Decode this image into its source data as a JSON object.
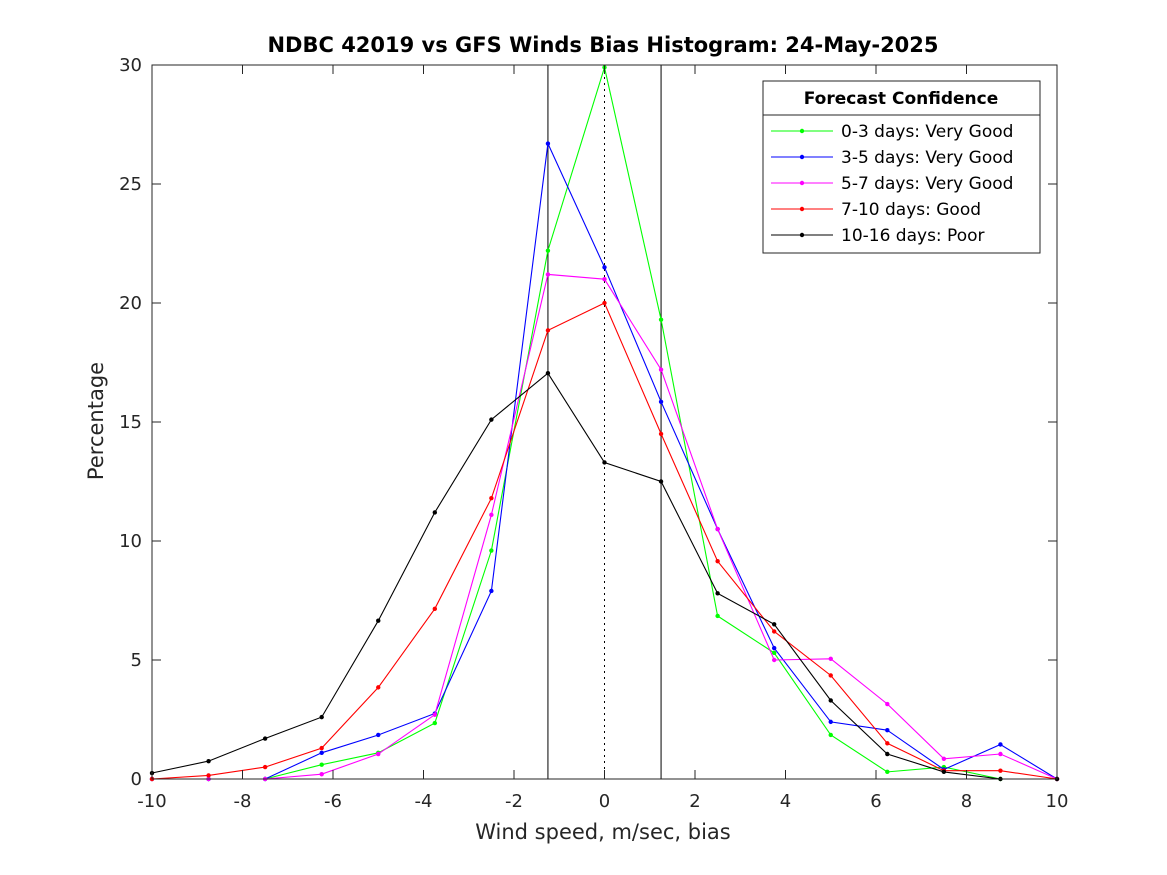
{
  "chart_data": {
    "type": "line",
    "title": "NDBC 42019 vs GFS Winds Bias Histogram: 24-May-2025",
    "xlabel": "Wind speed, m/sec, bias",
    "ylabel": "Percentage",
    "xlim": [
      -10,
      10
    ],
    "ylim": [
      0,
      30
    ],
    "xticks": [
      -10,
      -8,
      -6,
      -4,
      -2,
      0,
      2,
      4,
      6,
      8,
      10
    ],
    "yticks": [
      0,
      5,
      10,
      15,
      20,
      25,
      30
    ],
    "grid": false,
    "legend_title": "Forecast Confidence",
    "legend_position": "top-right",
    "reference_lines": [
      {
        "x": -1.25,
        "style": "solid"
      },
      {
        "x": 0,
        "style": "dotted"
      },
      {
        "x": 1.25,
        "style": "solid"
      }
    ],
    "x": [
      -10,
      -8.75,
      -7.5,
      -6.25,
      -5,
      -3.75,
      -2.5,
      -1.25,
      0,
      1.25,
      2.5,
      3.75,
      5,
      6.25,
      7.5,
      8.75,
      10
    ],
    "series": [
      {
        "name": "0-3 days: Very Good",
        "color": "#00ff00",
        "values": [
          0,
          0,
          0,
          0.6,
          1.1,
          2.35,
          9.6,
          22.2,
          29.9,
          19.3,
          6.85,
          5.3,
          1.85,
          0.3,
          0.5,
          0,
          0
        ]
      },
      {
        "name": "3-5 days: Very Good",
        "color": "#0000ff",
        "values": [
          0,
          0,
          0,
          1.1,
          1.85,
          2.75,
          7.9,
          26.7,
          21.5,
          15.85,
          10.5,
          5.5,
          2.4,
          2.05,
          0.4,
          1.45,
          0
        ]
      },
      {
        "name": "5-7 days: Very Good",
        "color": "#ff00ff",
        "values": [
          0,
          0,
          0,
          0.2,
          1.05,
          2.7,
          11.1,
          21.2,
          21.0,
          17.2,
          10.5,
          5.0,
          5.05,
          3.15,
          0.85,
          1.05,
          0
        ]
      },
      {
        "name": "7-10 days: Good",
        "color": "#ff0000",
        "values": [
          0,
          0.15,
          0.5,
          1.3,
          3.85,
          7.15,
          11.8,
          18.85,
          20.0,
          14.5,
          9.15,
          6.2,
          4.35,
          1.5,
          0.35,
          0.35,
          0
        ]
      },
      {
        "name": "10-16 days: Poor",
        "color": "#000000",
        "values": [
          0.25,
          0.75,
          1.7,
          2.6,
          6.65,
          11.2,
          15.1,
          17.05,
          13.3,
          12.5,
          7.8,
          6.5,
          3.3,
          1.05,
          0.3,
          0,
          0
        ]
      }
    ]
  }
}
